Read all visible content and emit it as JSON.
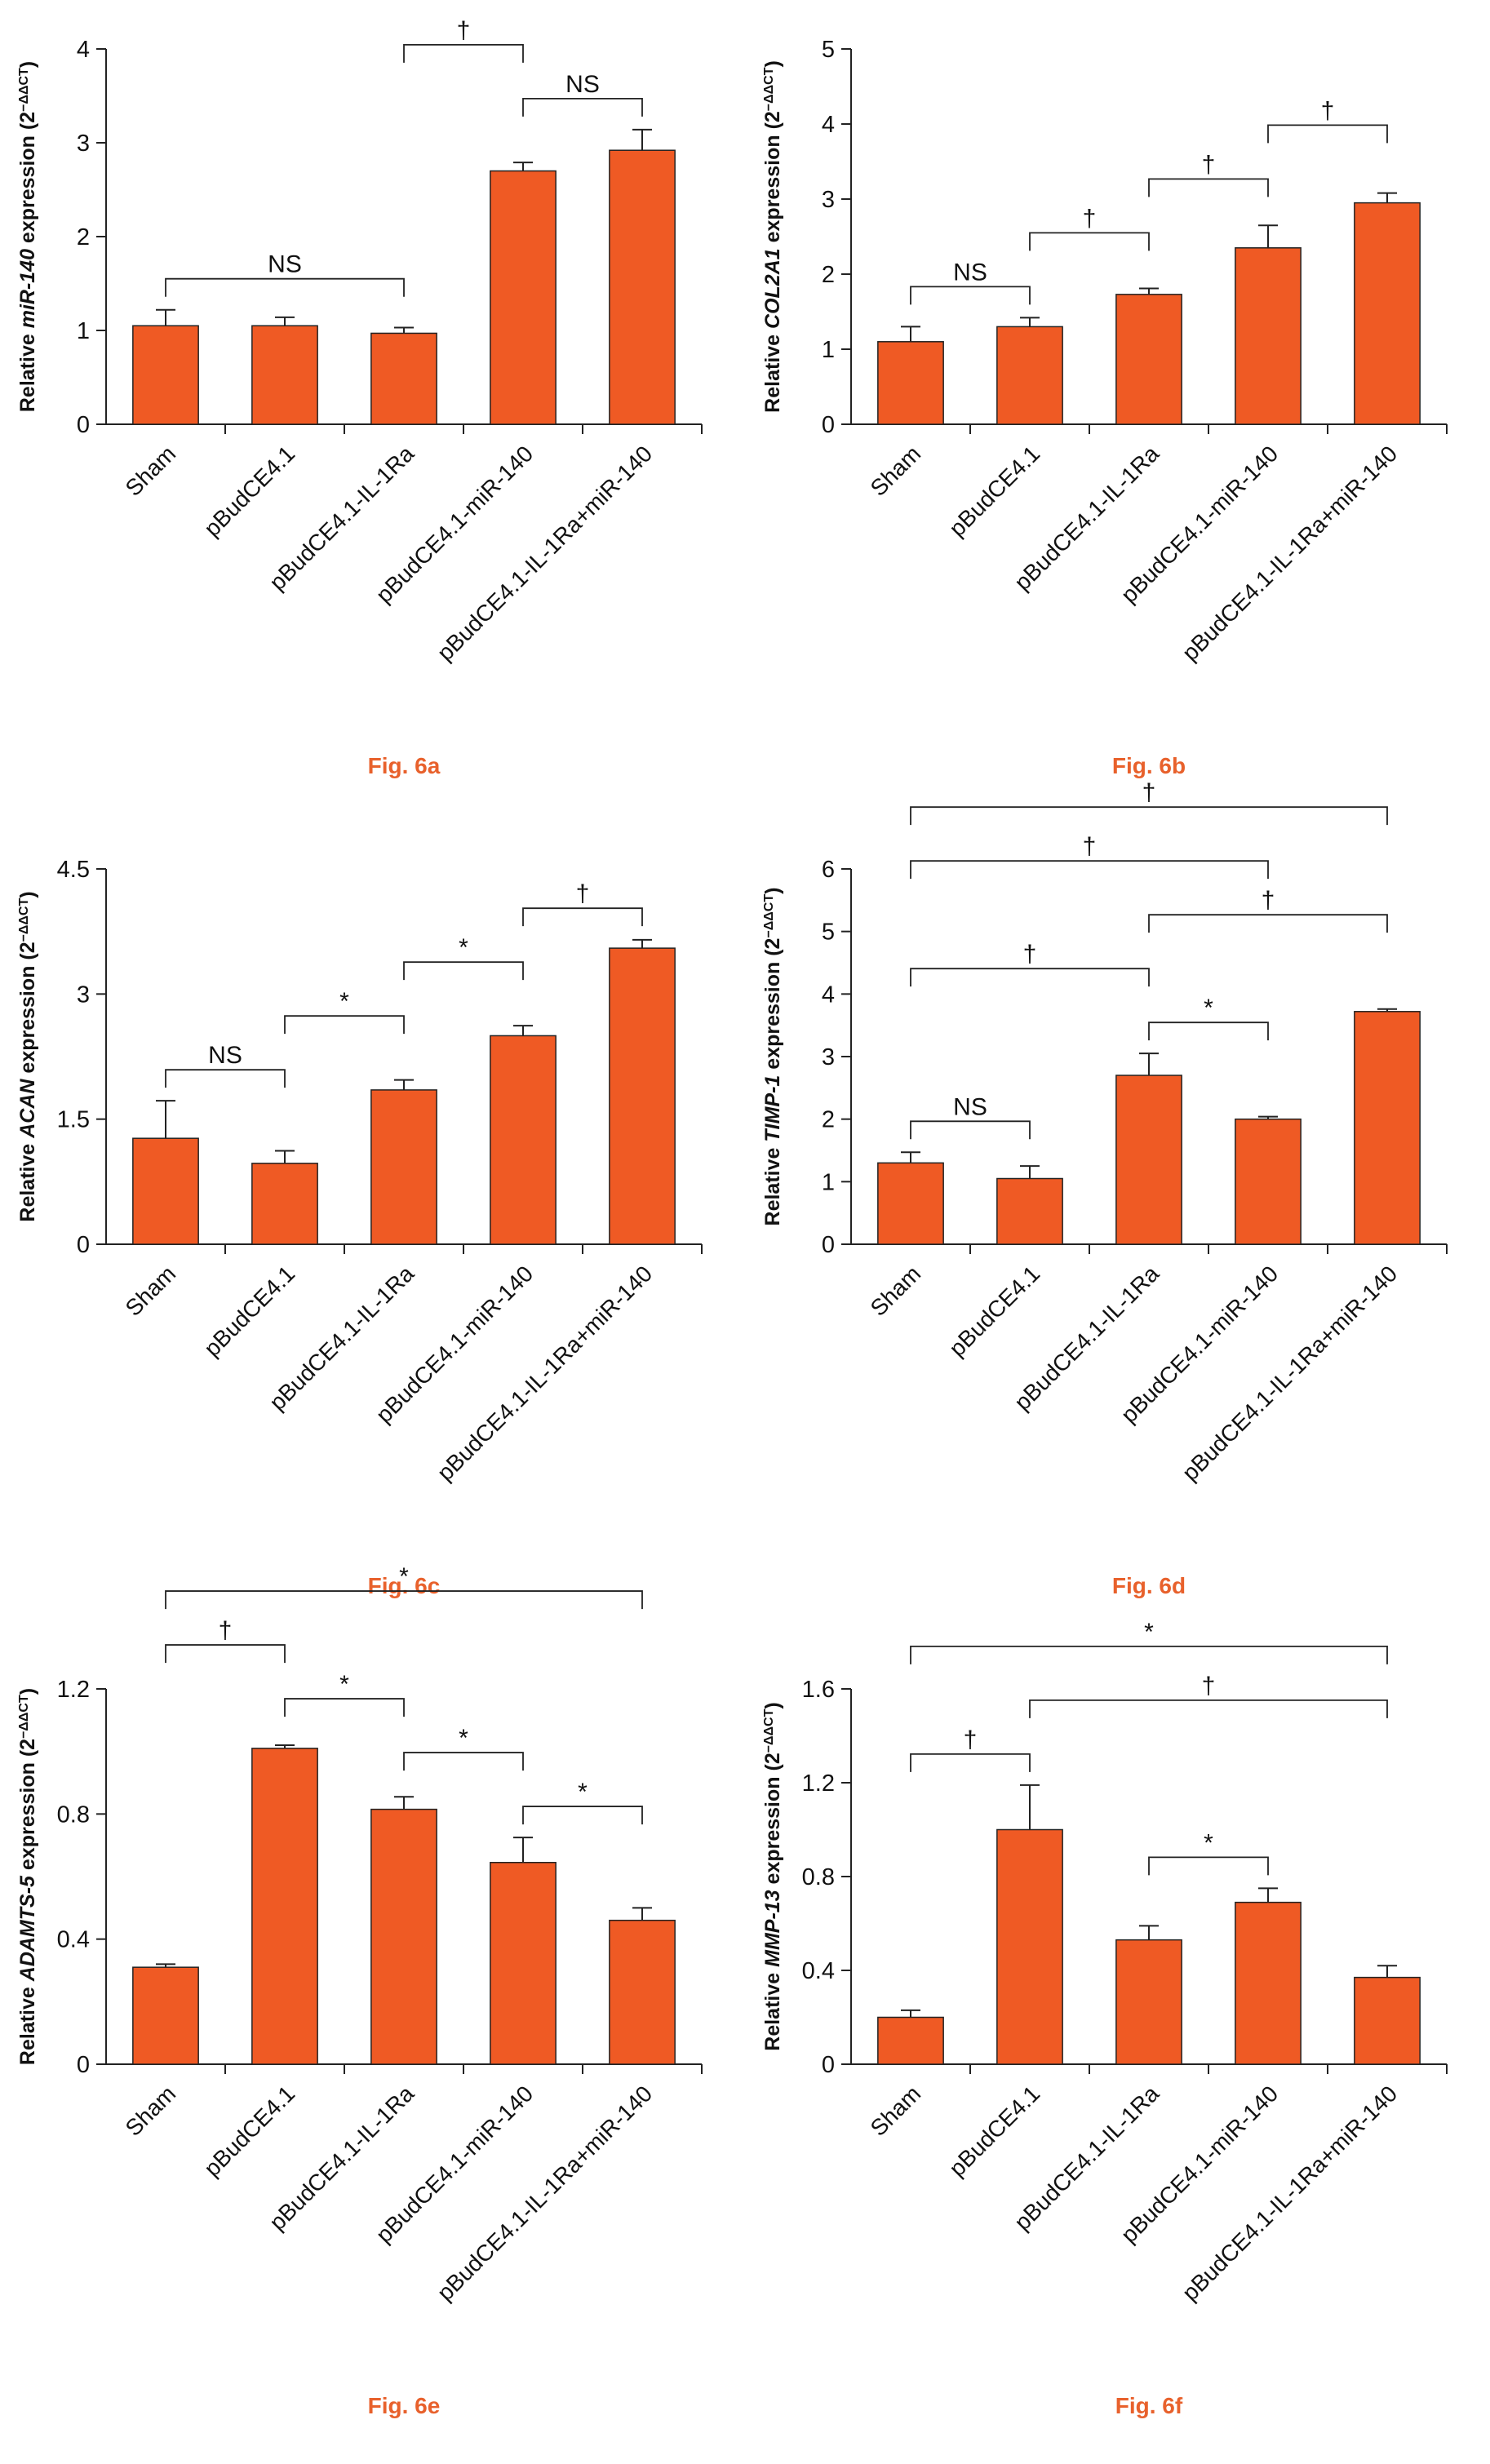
{
  "chart_data": [
    {
      "type": "bar",
      "caption": "Fig. 6a",
      "color": "#ef5a24",
      "y_label": [
        "Relative ",
        "miR-140",
        " expression (2",
        "−ΔΔCT",
        ")"
      ],
      "categories": [
        "Sham",
        "pBudCE4.1",
        "pBudCE4.1-IL-1Ra",
        "pBudCE4.1-miR-140",
        "pBudCE4.1-IL-1Ra+miR-140"
      ],
      "values": [
        1.05,
        1.05,
        0.97,
        2.7,
        2.92
      ],
      "errors": [
        0.17,
        0.09,
        0.06,
        0.09,
        0.22
      ],
      "ylim": [
        0,
        4
      ],
      "yticks": [
        0,
        1,
        2,
        3,
        4
      ],
      "comparisons": [
        {
          "from": 0,
          "to": 2,
          "label": "NS"
        },
        {
          "from": 3,
          "to": 4,
          "label": "NS"
        },
        {
          "from": 2,
          "to": 3,
          "label": "†"
        }
      ]
    },
    {
      "type": "bar",
      "caption": "Fig. 6b",
      "color": "#ef5a24",
      "y_label": [
        "Relative ",
        "COL2A1",
        " expression (2",
        "−ΔΔCT",
        ")"
      ],
      "categories": [
        "Sham",
        "pBudCE4.1",
        "pBudCE4.1-IL-1Ra",
        "pBudCE4.1-miR-140",
        "pBudCE4.1-IL-1Ra+miR-140"
      ],
      "values": [
        1.1,
        1.3,
        1.73,
        2.35,
        2.95
      ],
      "errors": [
        0.2,
        0.12,
        0.08,
        0.3,
        0.13
      ],
      "ylim": [
        0,
        5
      ],
      "yticks": [
        0,
        1,
        2,
        3,
        4,
        5
      ],
      "comparisons": [
        {
          "from": 0,
          "to": 1,
          "label": "NS"
        },
        {
          "from": 1,
          "to": 2,
          "label": "†"
        },
        {
          "from": 2,
          "to": 3,
          "label": "†"
        },
        {
          "from": 3,
          "to": 4,
          "label": "†"
        }
      ]
    },
    {
      "type": "bar",
      "caption": "Fig. 6c",
      "color": "#ef5a24",
      "y_label": [
        "Relative ",
        "ACAN",
        " expression (2",
        "−ΔΔCT",
        ")"
      ],
      "categories": [
        "Sham",
        "pBudCE4.1",
        "pBudCE4.1-IL-1Ra",
        "pBudCE4.1-miR-140",
        "pBudCE4.1-IL-1Ra+miR-140"
      ],
      "values": [
        1.27,
        0.97,
        1.85,
        2.5,
        3.55
      ],
      "errors": [
        0.45,
        0.15,
        0.12,
        0.12,
        0.1
      ],
      "ylim": [
        0,
        4.5
      ],
      "yticks": [
        0,
        1.5,
        3,
        4.5
      ],
      "comparisons": [
        {
          "from": 0,
          "to": 1,
          "label": "NS"
        },
        {
          "from": 1,
          "to": 2,
          "label": "*"
        },
        {
          "from": 2,
          "to": 3,
          "label": "*"
        },
        {
          "from": 3,
          "to": 4,
          "label": "†"
        }
      ]
    },
    {
      "type": "bar",
      "caption": "Fig. 6d",
      "color": "#ef5a24",
      "y_label": [
        "Relative ",
        "TIMP-1",
        " expression (2",
        "−ΔΔCT",
        ")"
      ],
      "categories": [
        "Sham",
        "pBudCE4.1",
        "pBudCE4.1-IL-1Ra",
        "pBudCE4.1-miR-140",
        "pBudCE4.1-IL-1Ra+miR-140"
      ],
      "values": [
        1.3,
        1.05,
        2.7,
        2.0,
        3.72
      ],
      "errors": [
        0.17,
        0.2,
        0.35,
        0.04,
        0.04
      ],
      "ylim": [
        0,
        6
      ],
      "yticks": [
        0,
        1,
        2,
        3,
        4,
        5,
        6
      ],
      "comparisons": [
        {
          "from": 0,
          "to": 1,
          "label": "NS"
        },
        {
          "from": 2,
          "to": 3,
          "label": "*"
        },
        {
          "from": 0,
          "to": 2,
          "label": "†"
        },
        {
          "from": 2,
          "to": 4,
          "label": "†"
        },
        {
          "from": 0,
          "to": 3,
          "label": "†"
        },
        {
          "from": 0,
          "to": 4,
          "label": "†"
        }
      ]
    },
    {
      "type": "bar",
      "caption": "Fig. 6e",
      "color": "#ef5a24",
      "y_label": [
        "Relative ",
        "ADAMTS-5",
        " expression (2",
        "−ΔΔCT",
        ")"
      ],
      "categories": [
        "Sham",
        "pBudCE4.1",
        "pBudCE4.1-IL-1Ra",
        "pBudCE4.1-miR-140",
        "pBudCE4.1-IL-1Ra+miR-140"
      ],
      "values": [
        0.31,
        1.01,
        0.815,
        0.645,
        0.46
      ],
      "errors": [
        0.01,
        0.01,
        0.04,
        0.08,
        0.04
      ],
      "ylim": [
        0,
        1.2
      ],
      "yticks": [
        0,
        0.4,
        0.8,
        1.2
      ],
      "comparisons": [
        {
          "from": 3,
          "to": 4,
          "label": "*"
        },
        {
          "from": 2,
          "to": 3,
          "label": "*"
        },
        {
          "from": 1,
          "to": 2,
          "label": "*"
        },
        {
          "from": 0,
          "to": 1,
          "label": "†"
        },
        {
          "from": 0,
          "to": 4,
          "label": "*"
        }
      ]
    },
    {
      "type": "bar",
      "caption": "Fig. 6f",
      "color": "#ef5a24",
      "y_label": [
        "Relative ",
        "MMP-13",
        " expression (2",
        "−ΔΔCT",
        ")"
      ],
      "categories": [
        "Sham",
        "pBudCE4.1",
        "pBudCE4.1-IL-1Ra",
        "pBudCE4.1-miR-140",
        "pBudCE4.1-IL-1Ra+miR-140"
      ],
      "values": [
        0.2,
        1.0,
        0.53,
        0.69,
        0.37
      ],
      "errors": [
        0.03,
        0.19,
        0.06,
        0.06,
        0.05
      ],
      "ylim": [
        0,
        1.6
      ],
      "yticks": [
        0,
        0.4,
        0.8,
        1.2,
        1.6
      ],
      "comparisons": [
        {
          "from": 2,
          "to": 3,
          "label": "*"
        },
        {
          "from": 0,
          "to": 1,
          "label": "†"
        },
        {
          "from": 1,
          "to": 4,
          "label": "†"
        },
        {
          "from": 0,
          "to": 4,
          "label": "*"
        }
      ]
    }
  ]
}
